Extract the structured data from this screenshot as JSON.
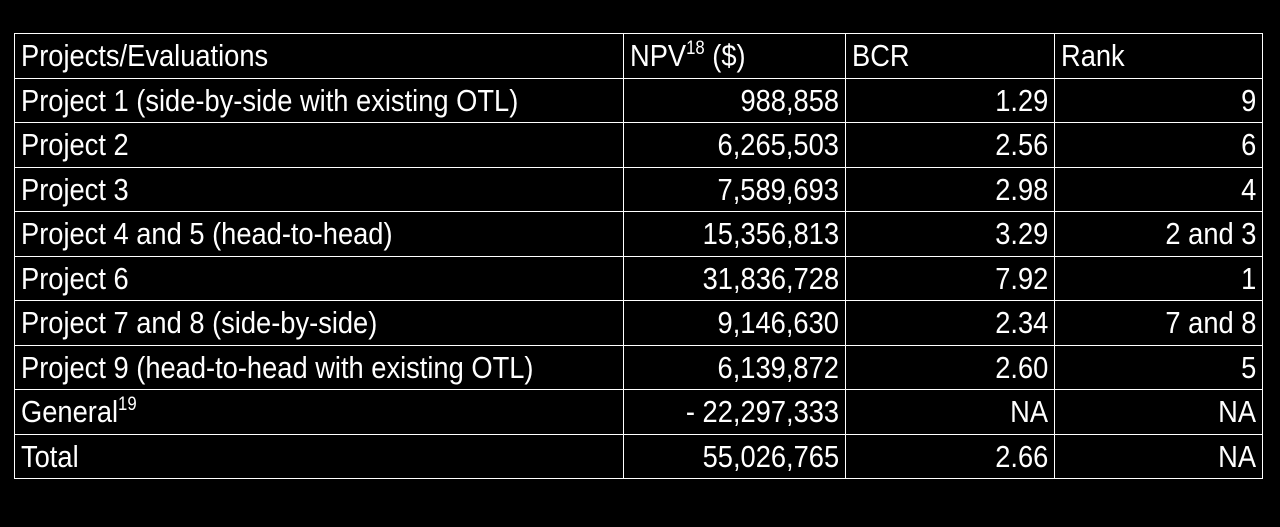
{
  "table": {
    "headers": {
      "project": "Projects/Evaluations",
      "npv": "NPV",
      "npv_sup": "18",
      "npv_unit": " ($)",
      "bcr": "BCR",
      "rank": "Rank"
    },
    "rows": [
      {
        "project": "Project 1 (side-by-side with existing OTL)",
        "npv": "988,858",
        "bcr": "1.29",
        "rank": "9"
      },
      {
        "project": "Project 2",
        "npv": "6,265,503",
        "bcr": "2.56",
        "rank": "6"
      },
      {
        "project": "Project 3",
        "npv": "7,589,693",
        "bcr": "2.98",
        "rank": "4"
      },
      {
        "project": "Project 4 and 5 (head-to-head)",
        "npv": "15,356,813",
        "bcr": "3.29",
        "rank": "2 and 3"
      },
      {
        "project": "Project 6",
        "npv": "31,836,728",
        "bcr": "7.92",
        "rank": "1"
      },
      {
        "project": "Project 7 and 8 (side-by-side)",
        "npv": "9,146,630",
        "bcr": "2.34",
        "rank": "7 and 8"
      },
      {
        "project": "Project 9 (head-to-head with existing OTL)",
        "npv": "6,139,872",
        "bcr": "2.60",
        "rank": "5"
      }
    ],
    "general": {
      "project": "General",
      "project_sup": "19",
      "npv": "- 22,297,333",
      "bcr": "NA",
      "rank": "NA"
    },
    "total": {
      "project": "Total",
      "npv": "55,026,765",
      "bcr": "2.66",
      "rank": "NA"
    }
  }
}
